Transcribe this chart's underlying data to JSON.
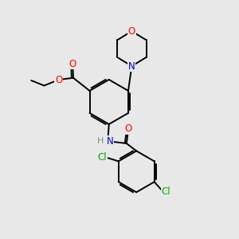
{
  "bg_color": "#e8e8e8",
  "bond_color": "#000000",
  "atom_colors": {
    "O": "#ff0000",
    "N": "#0000cc",
    "Cl": "#00aa00",
    "C": "#000000",
    "H": "#888888"
  },
  "line_width": 1.4,
  "font_size": 8.5,
  "fig_size": [
    3.0,
    3.0
  ],
  "dpi": 100
}
